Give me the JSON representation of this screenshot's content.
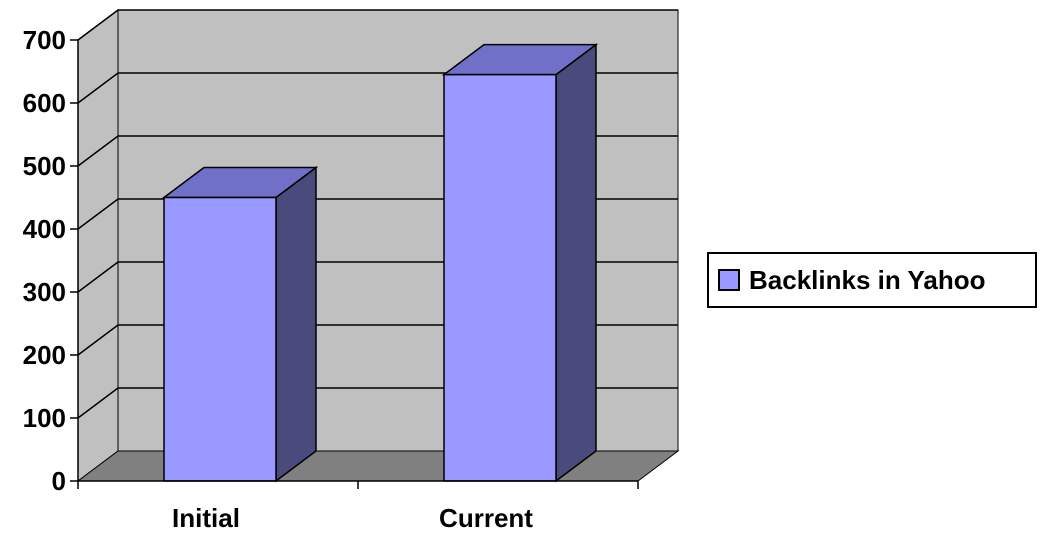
{
  "chart_data": {
    "type": "bar",
    "categories": [
      "Initial",
      "Current"
    ],
    "series": [
      {
        "name": "Backlinks in Yahoo",
        "values": [
          450,
          645
        ]
      }
    ],
    "yticks": [
      "0",
      "100",
      "200",
      "300",
      "400",
      "500",
      "600",
      "700"
    ],
    "ylim": [
      0,
      700
    ],
    "grid": true,
    "legend_position": "right",
    "style": "3d-column"
  },
  "colors": {
    "bar_front": "#9999ff",
    "bar_top": "#7070c8",
    "bar_side": "#4a4a7c",
    "wall": "#c0c0c0",
    "floor": "#808080"
  }
}
